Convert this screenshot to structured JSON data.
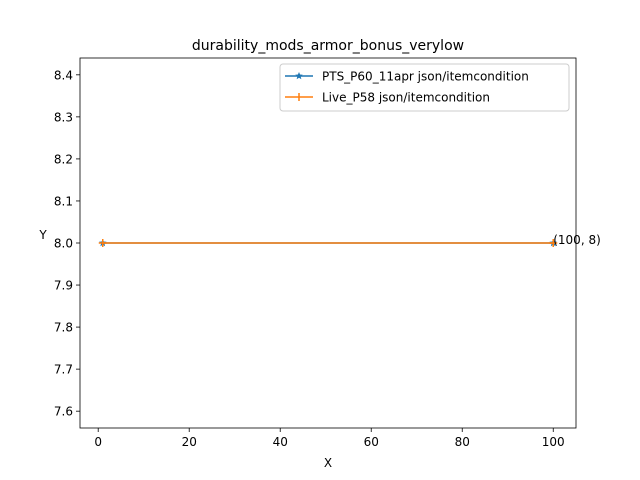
{
  "chart_data": {
    "type": "line",
    "title": "durability_mods_armor_bonus_verylow",
    "xlabel": "X",
    "ylabel": "Y",
    "xlim": [
      -4,
      105
    ],
    "ylim": [
      7.56,
      8.44
    ],
    "xticks": [
      0,
      20,
      40,
      60,
      80,
      100
    ],
    "yticks": [
      7.6,
      7.7,
      7.8,
      7.9,
      8.0,
      8.1,
      8.2,
      8.3,
      8.4
    ],
    "xtick_labels": [
      "0",
      "20",
      "40",
      "60",
      "80",
      "100"
    ],
    "ytick_labels": [
      "7.6",
      "7.7",
      "7.8",
      "7.9",
      "8.0",
      "8.1",
      "8.2",
      "8.3",
      "8.4"
    ],
    "legend_position": "top-right",
    "grid": false,
    "series": [
      {
        "name": "PTS_P60_11apr json/itemcondition",
        "color": "#1f77b4",
        "marker": "star",
        "x": [
          1,
          100
        ],
        "y": [
          8,
          8
        ]
      },
      {
        "name": "Live_P58 json/itemcondition",
        "color": "#ff7f0e",
        "marker": "plus",
        "x": [
          1,
          100
        ],
        "y": [
          8,
          8
        ]
      }
    ],
    "annotations": [
      {
        "text": "(100, 8)",
        "x": 100,
        "y": 8
      }
    ]
  }
}
